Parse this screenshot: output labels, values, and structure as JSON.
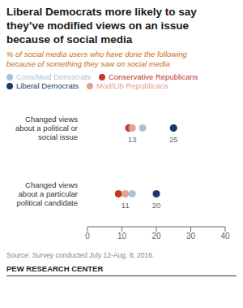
{
  "chart_data": {
    "type": "scatter",
    "title": "Liberal Democrats more likely to say\nthey’ve modified views on an issue\nbecause of social media",
    "subtitle": "% of social media users who have done the following\nbecause of something they saw on social media",
    "source": "Source: Survey conducted July 12-Aug. 8, 2016.",
    "credit": "PEW RESEARCH CENTER",
    "orientation": "horizontal",
    "categories": [
      "Changed views\nabout a political or\nsocial issue",
      "Changed views\nabout a particular\npolitical candidate"
    ],
    "series": [
      {
        "name": "Conservative Republicans",
        "color": "#c0392b",
        "values": [
          12,
          9
        ],
        "data_labels": false
      },
      {
        "name": "Mod/Lib Republicans",
        "color": "#e8a090",
        "values": [
          13,
          11
        ],
        "data_labels": true
      },
      {
        "name": "Cons/Mod Democrats",
        "color": "#a8c4d8",
        "values": [
          16,
          13
        ],
        "data_labels": false
      },
      {
        "name": "Liberal Democrats",
        "color": "#1a3a6b",
        "values": [
          25,
          20
        ],
        "data_labels": true
      }
    ],
    "xlim": [
      0,
      40
    ],
    "xticks": [
      0,
      10,
      20,
      30,
      40
    ],
    "grid": false,
    "legend": "top"
  }
}
